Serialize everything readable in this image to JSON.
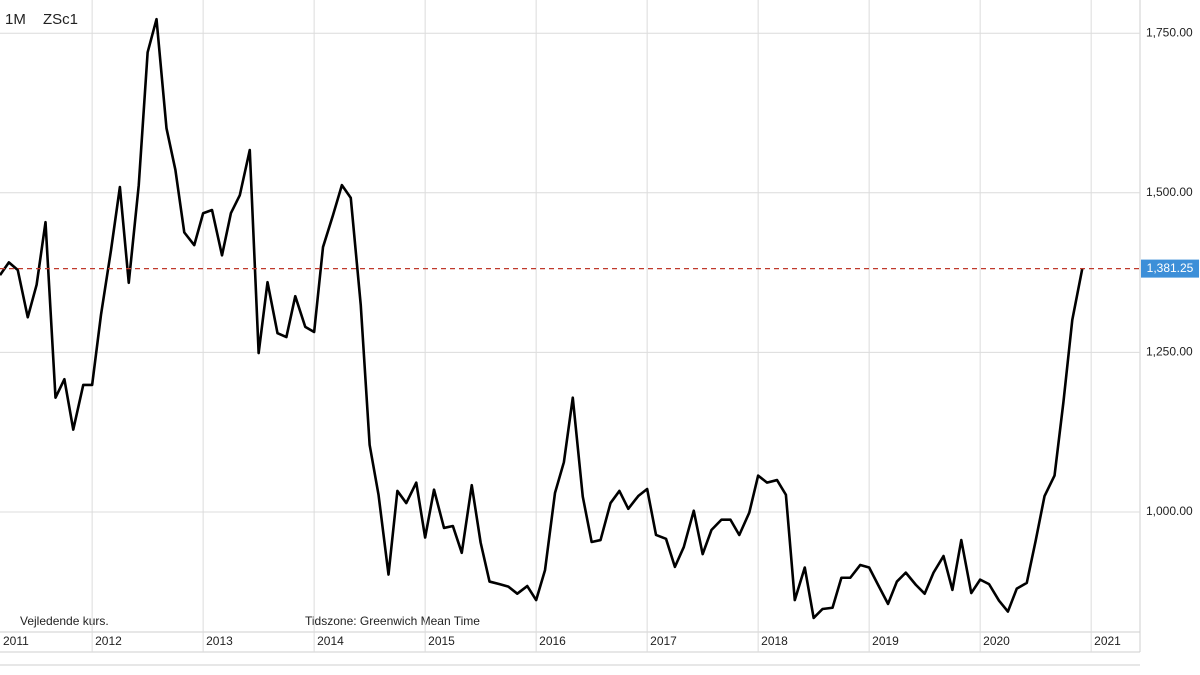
{
  "chart_data": {
    "type": "line",
    "interval": "1M",
    "symbol": "ZSc1",
    "notes": [
      "Vejledende kurs.",
      "Tidszone: Greenwich Mean Time"
    ],
    "x": [
      2011.17,
      2011.25,
      2011.33,
      2011.42,
      2011.5,
      2011.58,
      2011.67,
      2011.75,
      2011.83,
      2011.92,
      2012.0,
      2012.08,
      2012.17,
      2012.25,
      2012.33,
      2012.42,
      2012.5,
      2012.58,
      2012.67,
      2012.75,
      2012.83,
      2012.92,
      2013.0,
      2013.08,
      2013.17,
      2013.25,
      2013.33,
      2013.42,
      2013.5,
      2013.58,
      2013.67,
      2013.75,
      2013.83,
      2013.92,
      2014.0,
      2014.08,
      2014.17,
      2014.25,
      2014.33,
      2014.42,
      2014.5,
      2014.58,
      2014.67,
      2014.75,
      2014.83,
      2014.92,
      2015.0,
      2015.08,
      2015.17,
      2015.25,
      2015.33,
      2015.42,
      2015.5,
      2015.58,
      2015.67,
      2015.75,
      2015.83,
      2015.92,
      2016.0,
      2016.08,
      2016.17,
      2016.25,
      2016.33,
      2016.42,
      2016.5,
      2016.58,
      2016.67,
      2016.75,
      2016.83,
      2016.92,
      2017.0,
      2017.08,
      2017.17,
      2017.25,
      2017.33,
      2017.42,
      2017.5,
      2017.58,
      2017.67,
      2017.75,
      2017.83,
      2017.92,
      2018.0,
      2018.08,
      2018.17,
      2018.25,
      2018.33,
      2018.42,
      2018.5,
      2018.58,
      2018.67,
      2018.75,
      2018.83,
      2018.92,
      2019.0,
      2019.08,
      2019.17,
      2019.25,
      2019.33,
      2019.42,
      2019.5,
      2019.58,
      2019.67,
      2019.75,
      2019.83,
      2019.92,
      2020.0,
      2020.08,
      2020.17,
      2020.25,
      2020.33,
      2020.42,
      2020.5,
      2020.58,
      2020.67,
      2020.75,
      2020.83,
      2020.92
    ],
    "series": [
      {
        "name": "ZSc1",
        "color": "#000000",
        "values": [
          1371,
          1391,
          1379,
          1305,
          1356,
          1454,
          1179,
          1208,
          1129,
          1199,
          1199,
          1309,
          1410,
          1509,
          1359,
          1512,
          1720,
          1772,
          1601,
          1536,
          1438,
          1418,
          1468,
          1473,
          1402,
          1468,
          1496,
          1567,
          1249,
          1360,
          1280,
          1274,
          1338,
          1290,
          1282,
          1415,
          1465,
          1512,
          1492,
          1324,
          1105,
          1027,
          902,
          1033,
          1014,
          1046,
          960,
          1035,
          975,
          978,
          936,
          1042,
          952,
          891,
          887,
          883,
          872,
          884,
          862,
          909,
          1030,
          1078,
          1179,
          1024,
          953,
          956,
          1014,
          1033,
          1005,
          1025,
          1036,
          964,
          958,
          914,
          945,
          1002,
          934,
          972,
          988,
          988,
          964,
          999,
          1057,
          1046,
          1050,
          1027,
          862,
          913,
          834,
          848,
          850,
          897,
          897,
          917,
          913,
          886,
          856,
          891,
          905,
          886,
          872,
          905,
          931,
          878,
          956,
          873,
          894,
          887,
          861,
          844,
          880,
          889,
          955,
          1025,
          1057,
          1172,
          1301,
          1381.25
        ]
      }
    ],
    "reference_line": {
      "value": 1381.25,
      "label": "1,381.25",
      "color": "#c0392b",
      "label_color": "#3d8fd8"
    },
    "xlim": [
      2011.17,
      2021.44
    ],
    "xticks": [
      2011,
      2012,
      2013,
      2014,
      2015,
      2016,
      2017,
      2018,
      2019,
      2020,
      2021
    ],
    "ylim": [
      812,
      1802
    ],
    "yticks": [
      {
        "value": 1000,
        "label": "1,000.00"
      },
      {
        "value": 1250,
        "label": "1,250.00"
      },
      {
        "value": 1500,
        "label": "1,500.00"
      },
      {
        "value": 1750,
        "label": "1,750.00"
      }
    ],
    "grid": true
  }
}
